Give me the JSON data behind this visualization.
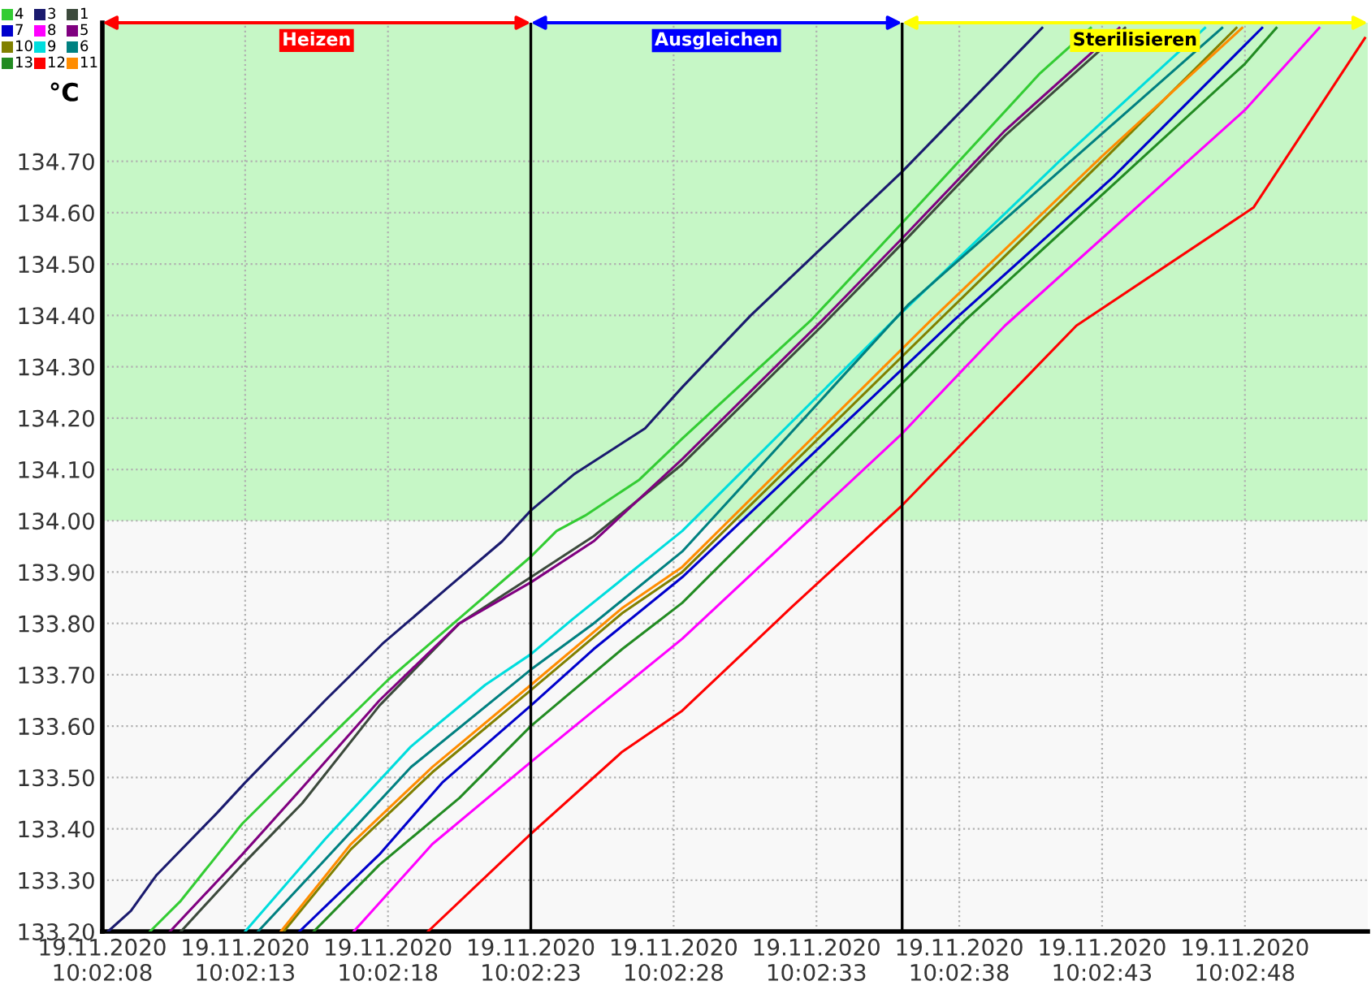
{
  "chart_data": {
    "type": "line",
    "ylabel": "°C",
    "xlim": [
      "2020-11-19T10:02:08",
      "2020-11-19T10:02:52.3"
    ],
    "ylim": [
      133.2,
      134.97
    ],
    "xticks": [
      {
        "value": "2020-11-19T10:02:08",
        "label": "19.11.2020\n10:02:08"
      },
      {
        "value": "2020-11-19T10:02:13",
        "label": "19.11.2020\n10:02:13"
      },
      {
        "value": "2020-11-19T10:02:18",
        "label": "19.11.2020\n10:02:18"
      },
      {
        "value": "2020-11-19T10:02:23",
        "label": "19.11.2020\n10:02:23"
      },
      {
        "value": "2020-11-19T10:02:28",
        "label": "19.11.2020\n10:02:28"
      },
      {
        "value": "2020-11-19T10:02:33",
        "label": "19.11.2020\n10:02:33"
      },
      {
        "value": "2020-11-19T10:02:38",
        "label": "19.11.2020\n10:02:38"
      },
      {
        "value": "2020-11-19T10:02:43",
        "label": "19.11.2020\n10:02:43"
      },
      {
        "value": "2020-11-19T10:02:48",
        "label": "19.11.2020\n10:02:48"
      }
    ],
    "yticks": [
      {
        "value": 133.2,
        "label": "133.20"
      },
      {
        "value": 133.3,
        "label": "133.30"
      },
      {
        "value": 133.4,
        "label": "133.40"
      },
      {
        "value": 133.5,
        "label": "133.50"
      },
      {
        "value": 133.6,
        "label": "133.60"
      },
      {
        "value": 133.7,
        "label": "133.70"
      },
      {
        "value": 133.8,
        "label": "133.80"
      },
      {
        "value": 133.9,
        "label": "133.90"
      },
      {
        "value": 134.0,
        "label": "134.00"
      },
      {
        "value": 134.1,
        "label": "134.10"
      },
      {
        "value": 134.2,
        "label": "134.20"
      },
      {
        "value": 134.3,
        "label": "134.30"
      },
      {
        "value": 134.4,
        "label": "134.40"
      },
      {
        "value": 134.5,
        "label": "134.50"
      },
      {
        "value": 134.6,
        "label": "134.60"
      },
      {
        "value": 134.7,
        "label": "134.70"
      }
    ],
    "grid": true,
    "legend": "top left",
    "marker": "none",
    "line_style": "solid",
    "annotations": [
      "Heizen",
      "Ausgleichen",
      "Sterilisieren"
    ],
    "ref_lines": [
      {
        "axis": "x",
        "value": "2020-11-19T10:02:23",
        "label": null,
        "color": "#000000"
      },
      {
        "axis": "x",
        "value": "2020-11-19T10:02:36",
        "label": null,
        "color": "#000000"
      }
    ],
    "bands": [
      {
        "axis": "y",
        "from": 134.0,
        "to": 134.97,
        "label": null,
        "color": "#c6f7c6"
      }
    ],
    "series": [
      {
        "name": "4",
        "color": "#33cc33",
        "x": [
          "2020-11-19T10:02:09.67",
          "2020-11-19T10:02:10.75",
          "2020-11-19T10:02:12.9",
          "2020-11-19T10:02:15.8",
          "2020-11-19T10:02:18",
          "2020-11-19T10:02:20.5",
          "2020-11-19T10:02:23",
          "2020-11-19T10:02:23.9",
          "2020-11-19T10:02:24.9",
          "2020-11-19T10:02:26.8",
          "2020-11-19T10:02:28.3",
          "2020-11-19T10:02:32.8",
          "2020-11-19T10:02:36",
          "2020-11-19T10:02:40.8",
          "2020-11-19T10:02:42.6"
        ],
        "values": [
          133.2,
          133.26,
          133.41,
          133.57,
          133.69,
          133.81,
          133.93,
          133.98,
          134.01,
          134.08,
          134.16,
          134.39,
          134.58,
          134.87,
          134.96
        ]
      },
      {
        "name": "3",
        "color": "#1a1a6e",
        "x": [
          "2020-11-19T10:02:08.2",
          "2020-11-19T10:02:09",
          "2020-11-19T10:02:09.9",
          "2020-11-19T10:02:12",
          "2020-11-19T10:02:13",
          "2020-11-19T10:02:15.8",
          "2020-11-19T10:02:17.8",
          "2020-11-19T10:02:20.1",
          "2020-11-19T10:02:22",
          "2020-11-19T10:02:23",
          "2020-11-19T10:02:24.5",
          "2020-11-19T10:02:27",
          "2020-11-19T10:02:28.3",
          "2020-11-19T10:02:30.7",
          "2020-11-19T10:02:36",
          "2020-11-19T10:02:40.9"
        ],
        "values": [
          133.2,
          133.24,
          133.31,
          133.43,
          133.49,
          133.65,
          133.76,
          133.87,
          133.96,
          134.02,
          134.09,
          134.18,
          134.26,
          134.4,
          134.68,
          134.96
        ]
      },
      {
        "name": "1",
        "color": "#3c4a3c",
        "x": [
          "2020-11-19T10:02:10.75",
          "2020-11-19T10:02:12.9",
          "2020-11-19T10:02:15",
          "2020-11-19T10:02:17.7",
          "2020-11-19T10:02:20.5",
          "2020-11-19T10:02:23",
          "2020-11-19T10:02:25.2",
          "2020-11-19T10:02:28.3",
          "2020-11-19T10:02:33.2",
          "2020-11-19T10:02:36",
          "2020-11-19T10:02:39.6",
          "2020-11-19T10:02:43.8"
        ],
        "values": [
          133.2,
          133.33,
          133.45,
          133.64,
          133.8,
          133.89,
          133.97,
          134.11,
          134.38,
          134.54,
          134.75,
          134.96
        ]
      },
      {
        "name": "7",
        "color": "#0000cc",
        "x": [
          "2020-11-19T10:02:14.9",
          "2020-11-19T10:02:17.7",
          "2020-11-19T10:02:19.9",
          "2020-11-19T10:02:23",
          "2020-11-19T10:02:25.2",
          "2020-11-19T10:02:28.3",
          "2020-11-19T10:02:37.8",
          "2020-11-19T10:02:43.4",
          "2020-11-19T10:02:48.6"
        ],
        "values": [
          133.2,
          133.35,
          133.49,
          133.64,
          133.75,
          133.89,
          134.39,
          134.67,
          134.96
        ]
      },
      {
        "name": "8",
        "color": "#ff00ff",
        "x": [
          "2020-11-19T10:02:16.8",
          "2020-11-19T10:02:19.55",
          "2020-11-19T10:02:23",
          "2020-11-19T10:02:25.2",
          "2020-11-19T10:02:28.3",
          "2020-11-19T10:02:36",
          "2020-11-19T10:02:39.6",
          "2020-11-19T10:02:48",
          "2020-11-19T10:02:50.6"
        ],
        "values": [
          133.2,
          133.37,
          133.53,
          133.63,
          133.77,
          134.17,
          134.38,
          134.8,
          134.96
        ]
      },
      {
        "name": "5",
        "color": "#800080",
        "x": [
          "2020-11-19T10:02:10.37",
          "2020-11-19T10:02:12.9",
          "2020-11-19T10:02:15",
          "2020-11-19T10:02:17.7",
          "2020-11-19T10:02:20.5",
          "2020-11-19T10:02:23",
          "2020-11-19T10:02:25.2",
          "2020-11-19T10:02:28.3",
          "2020-11-19T10:02:33.2",
          "2020-11-19T10:02:36",
          "2020-11-19T10:02:39.6",
          "2020-11-19T10:02:43.6"
        ],
        "values": [
          133.2,
          133.35,
          133.48,
          133.65,
          133.8,
          133.88,
          133.96,
          134.12,
          134.39,
          134.55,
          134.76,
          134.96
        ]
      },
      {
        "name": "10",
        "color": "#808000",
        "x": [
          "2020-11-19T10:02:14.35",
          "2020-11-19T10:02:16.7",
          "2020-11-19T10:02:19.55",
          "2020-11-19T10:02:23",
          "2020-11-19T10:02:26.2",
          "2020-11-19T10:02:28.3",
          "2020-11-19T10:02:37.1",
          "2020-11-19T10:02:43",
          "2020-11-19T10:02:47.7"
        ],
        "values": [
          133.2,
          133.36,
          133.51,
          133.67,
          133.82,
          133.9,
          134.38,
          134.7,
          134.96
        ]
      },
      {
        "name": "9",
        "color": "#00dddd",
        "x": [
          "2020-11-19T10:02:13",
          "2020-11-19T10:02:15.8",
          "2020-11-19T10:02:18.8",
          "2020-11-19T10:02:21.4",
          "2020-11-19T10:02:23",
          "2020-11-19T10:02:24.5",
          "2020-11-19T10:02:28.3",
          "2020-11-19T10:02:35.7",
          "2020-11-19T10:02:41.5",
          "2020-11-19T10:02:46.6"
        ],
        "values": [
          133.2,
          133.38,
          133.56,
          133.68,
          133.74,
          133.81,
          133.98,
          134.39,
          134.7,
          134.96
        ]
      },
      {
        "name": "6",
        "color": "#008080",
        "x": [
          "2020-11-19T10:02:13.45",
          "2020-11-19T10:02:15.8",
          "2020-11-19T10:02:18.8",
          "2020-11-19T10:02:23",
          "2020-11-19T10:02:25.2",
          "2020-11-19T10:02:28.3",
          "2020-11-19T10:02:36.2",
          "2020-11-19T10:02:41.9",
          "2020-11-19T10:02:47.2"
        ],
        "values": [
          133.2,
          133.34,
          133.52,
          133.71,
          133.8,
          133.94,
          134.42,
          134.7,
          134.96
        ]
      },
      {
        "name": "13",
        "color": "#228b22",
        "x": [
          "2020-11-19T10:02:15.4",
          "2020-11-19T10:02:17.7",
          "2020-11-19T10:02:20.5",
          "2020-11-19T10:02:23",
          "2020-11-19T10:02:26.2",
          "2020-11-19T10:02:28.3",
          "2020-11-19T10:02:38.2",
          "2020-11-19T10:02:48",
          "2020-11-19T10:02:49.1"
        ],
        "values": [
          133.2,
          133.33,
          133.46,
          133.6,
          133.75,
          133.84,
          134.39,
          134.89,
          134.96
        ]
      },
      {
        "name": "12",
        "color": "#ff0000",
        "x": [
          "2020-11-19T10:02:19.4",
          "2020-11-19T10:02:23",
          "2020-11-19T10:02:26.2",
          "2020-11-19T10:02:28.3",
          "2020-11-19T10:02:32.1",
          "2020-11-19T10:02:36",
          "2020-11-19T10:02:42.1",
          "2020-11-19T10:02:48.3",
          "2020-11-19T10:02:52.2"
        ],
        "values": [
          133.2,
          133.39,
          133.55,
          133.63,
          133.83,
          134.03,
          134.38,
          134.61,
          134.94
        ]
      },
      {
        "name": "11",
        "color": "#ff8c00",
        "x": [
          "2020-11-19T10:02:14.25",
          "2020-11-19T10:02:16.7",
          "2020-11-19T10:02:19.55",
          "2020-11-19T10:02:23",
          "2020-11-19T10:02:26.2",
          "2020-11-19T10:02:28.3",
          "2020-11-19T10:02:37",
          "2020-11-19T10:02:43",
          "2020-11-19T10:02:47.9"
        ],
        "values": [
          133.2,
          133.37,
          133.52,
          133.68,
          133.83,
          133.91,
          134.39,
          134.71,
          134.96
        ]
      }
    ]
  }
}
